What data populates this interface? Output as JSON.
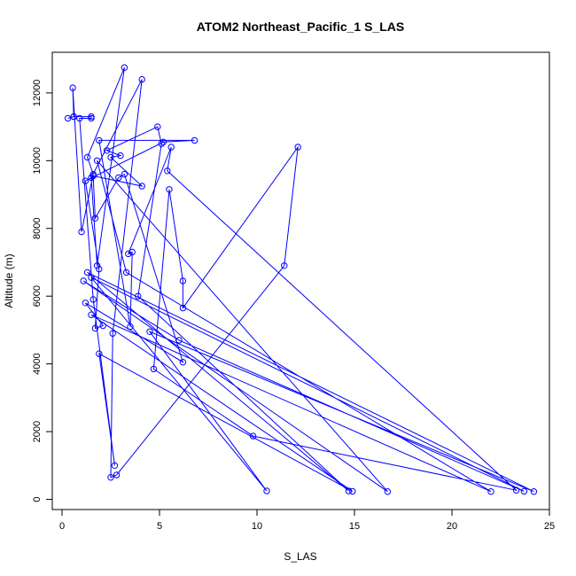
{
  "chart_data": {
    "type": "line",
    "title": "ATOM2 Northeast_Pacific_1 S_LAS",
    "xlabel": "S_LAS",
    "ylabel": "Altitude (m)",
    "xlim": [
      -0.5,
      25
    ],
    "ylim": [
      -300,
      13200
    ],
    "xticks": [
      0,
      5,
      10,
      15,
      20,
      25
    ],
    "yticks": [
      0,
      2000,
      4000,
      6000,
      8000,
      10000,
      12000
    ],
    "grid": false,
    "legend": "none",
    "color": "#0000ff",
    "series": [
      {
        "points": [
          [
            0.3,
            11250
          ],
          [
            0.6,
            11300
          ],
          [
            0.55,
            12150
          ],
          [
            1.0,
            7900
          ],
          [
            1.6,
            9600
          ],
          [
            1.3,
            10100
          ],
          [
            3.2,
            12750
          ],
          [
            1.8,
            6900
          ],
          [
            1.5,
            9500
          ],
          [
            4.1,
            12400
          ],
          [
            2.6,
            4900
          ],
          [
            2.5,
            650
          ],
          [
            2.8,
            720
          ],
          [
            11.4,
            6900
          ],
          [
            12.1,
            10400
          ],
          [
            6.2,
            5650
          ],
          [
            6.2,
            6450
          ],
          [
            5.5,
            9150
          ],
          [
            4.7,
            3850
          ],
          [
            9.8,
            1870
          ],
          [
            23.3,
            270
          ],
          [
            5.4,
            9700
          ],
          [
            5.6,
            10400
          ],
          [
            3.4,
            7250
          ],
          [
            3.6,
            7300
          ],
          [
            3.5,
            5100
          ],
          [
            1.9,
            10600
          ],
          [
            6.8,
            10600
          ],
          [
            5.2,
            10550
          ],
          [
            1.2,
            9400
          ],
          [
            1.9,
            6800
          ],
          [
            1.7,
            5050
          ],
          [
            2.1,
            5130
          ],
          [
            1.2,
            5800
          ],
          [
            6.2,
            4050
          ],
          [
            3.2,
            9600
          ],
          [
            2.9,
            9500
          ],
          [
            1.7,
            8300
          ],
          [
            1.6,
            9550
          ],
          [
            4.1,
            9250
          ],
          [
            2.5,
            10100
          ],
          [
            3.0,
            10150
          ],
          [
            2.3,
            10300
          ],
          [
            4.9,
            11000
          ],
          [
            5.1,
            10500
          ],
          [
            3.9,
            6000
          ],
          [
            14.7,
            250
          ],
          [
            1.3,
            6700
          ],
          [
            24.2,
            230
          ],
          [
            4.5,
            4950
          ],
          [
            10.5,
            250
          ],
          [
            1.5,
            6550
          ],
          [
            23.7,
            240
          ],
          [
            6.0,
            4700
          ],
          [
            1.1,
            6450
          ],
          [
            16.7,
            230
          ],
          [
            1.8,
            10000
          ],
          [
            3.3,
            6700
          ],
          [
            22.0,
            230
          ],
          [
            1.5,
            5450
          ],
          [
            14.9,
            240
          ],
          [
            1.9,
            4300
          ],
          [
            2.7,
            1000
          ],
          [
            1.6,
            5900
          ],
          [
            0.9,
            11250
          ],
          [
            1.5,
            11250
          ],
          [
            1.5,
            11300
          ],
          [
            0.6,
            11300
          ]
        ]
      }
    ]
  }
}
